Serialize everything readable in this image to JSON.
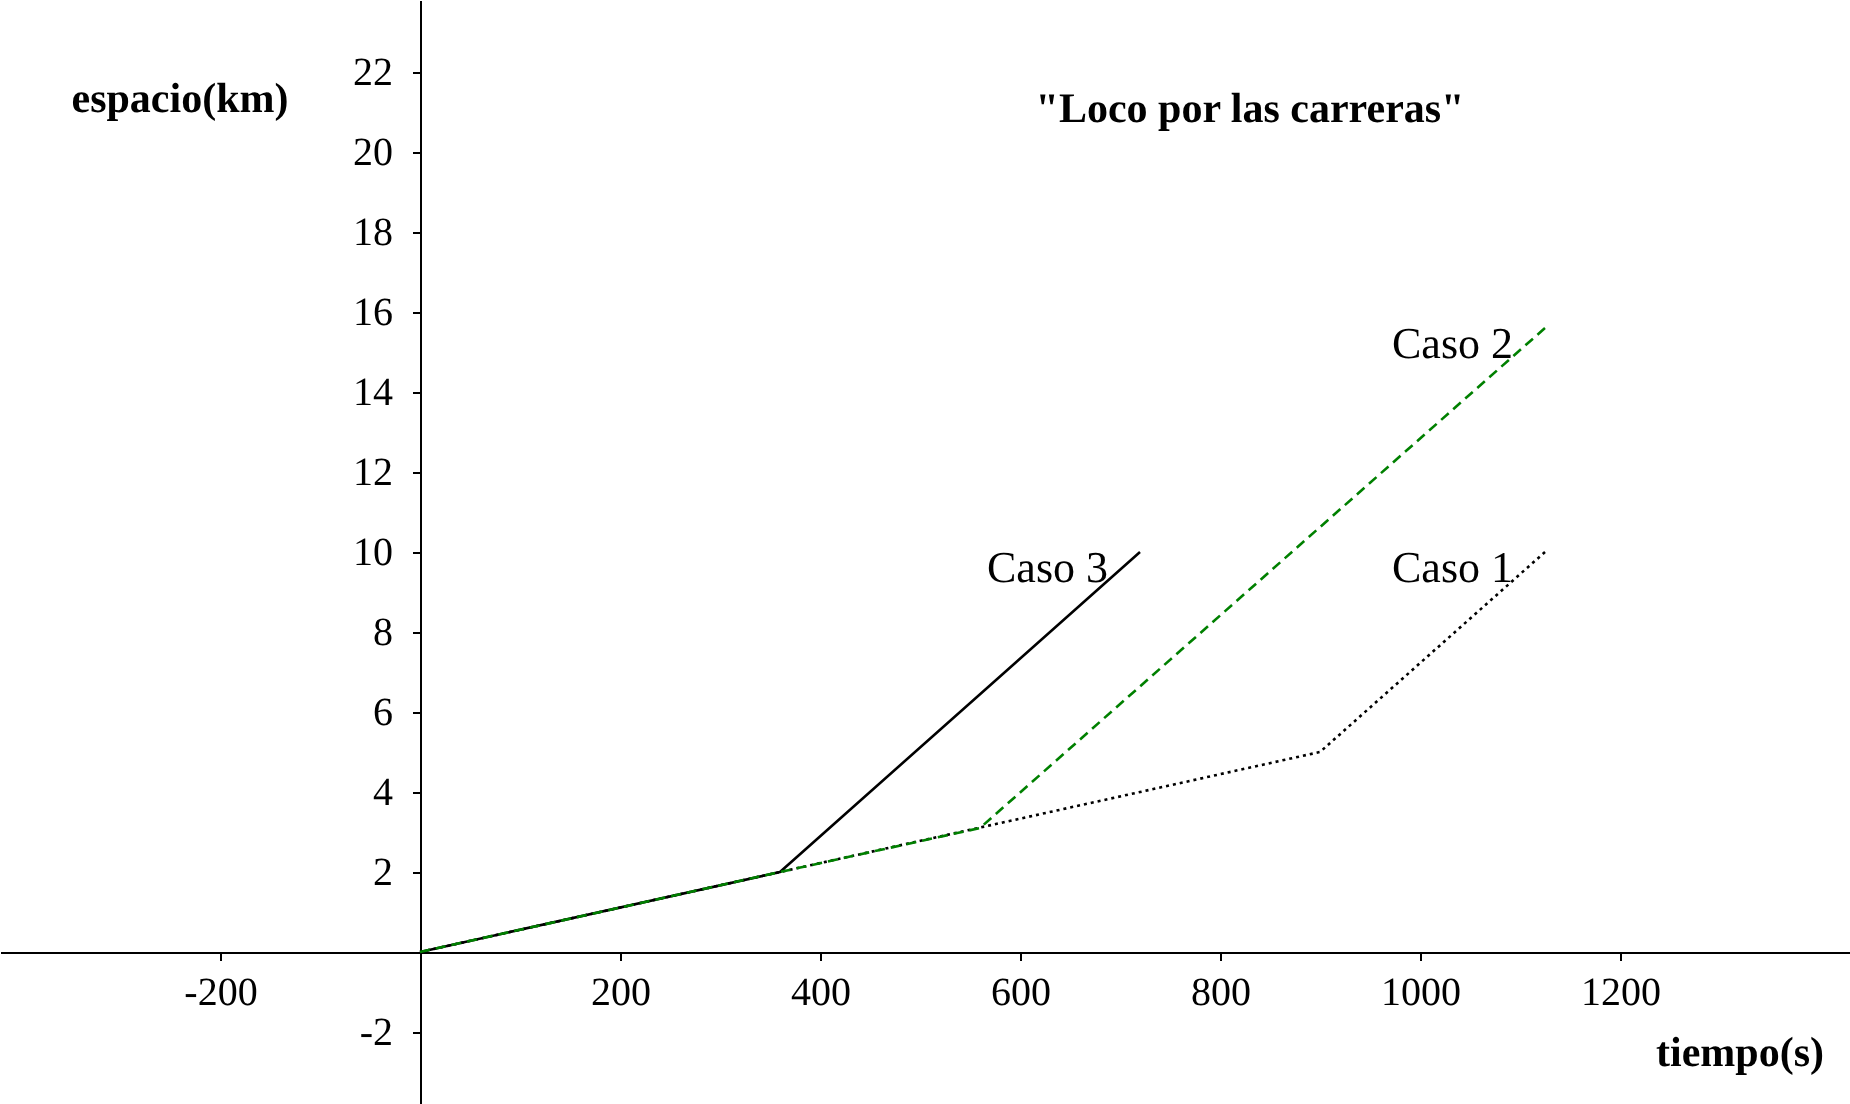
{
  "chart_data": {
    "type": "line",
    "title": "\"Loco por las carreras\"",
    "xlabel": "tiempo(s)",
    "ylabel": "espacio(km)",
    "xlim": [
      -420,
      1430
    ],
    "ylim": [
      -3.8,
      23.8
    ],
    "xticks": [
      -200,
      200,
      400,
      600,
      800,
      1000,
      1200
    ],
    "yticks": [
      -2,
      2,
      4,
      6,
      8,
      10,
      12,
      14,
      16,
      18,
      20,
      22
    ],
    "grid": false,
    "marker": "none",
    "series": [
      {
        "name": "Caso 1",
        "color": "#000000",
        "line_style": "dotted",
        "x": [
          0,
          360,
          900,
          1125
        ],
        "values": [
          0,
          2,
          5,
          10
        ]
      },
      {
        "name": "Caso 2",
        "color": "#008000",
        "line_style": "dashed",
        "x": [
          0,
          360,
          560,
          1125
        ],
        "values": [
          0,
          2,
          3.1,
          15.6
        ]
      },
      {
        "name": "Caso 3",
        "color": "#000000",
        "line_style": "solid",
        "x": [
          0,
          360,
          720
        ],
        "values": [
          0,
          2,
          10
        ]
      }
    ]
  }
}
